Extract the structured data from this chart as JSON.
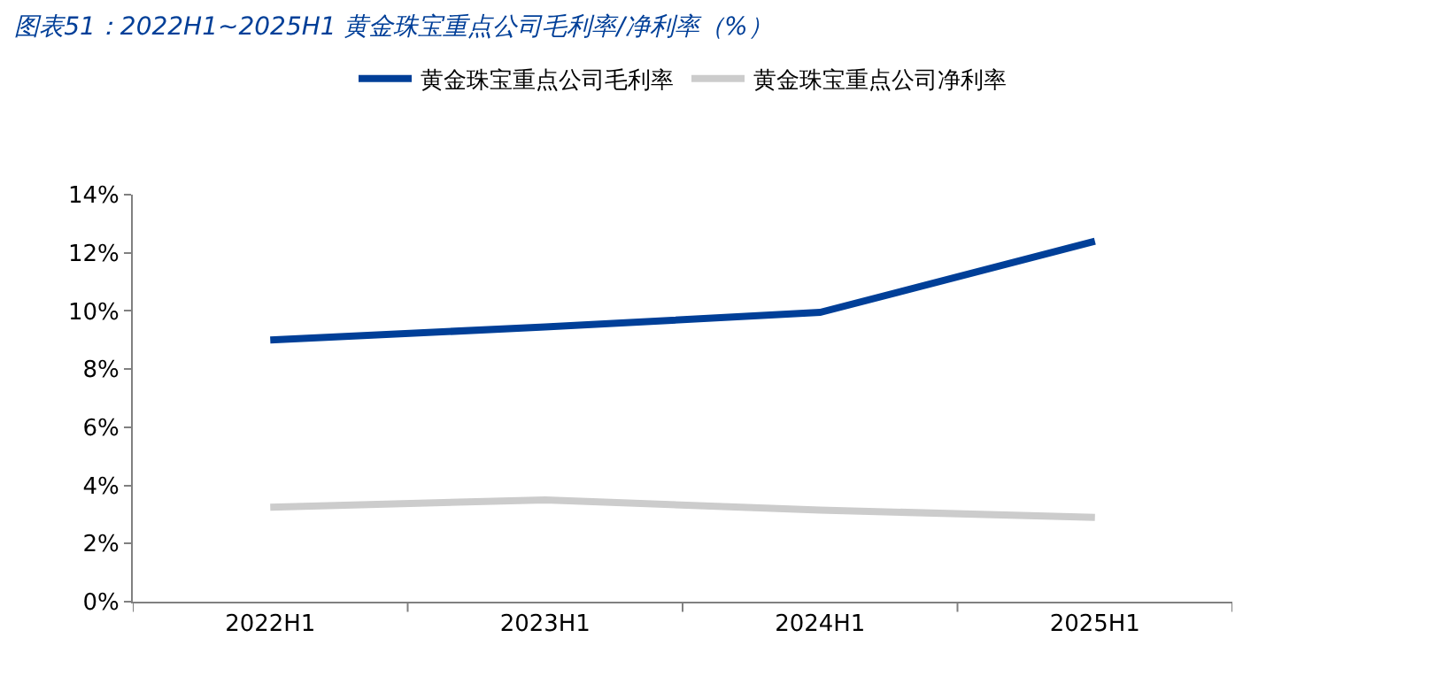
{
  "chart_data": {
    "type": "line",
    "title": "图表51：2022H1~2025H1 黄金珠宝重点公司毛利率/净利率（%）",
    "categories": [
      "2022H1",
      "2023H1",
      "2024H1",
      "2025H1"
    ],
    "series": [
      {
        "name": "黄金珠宝重点公司毛利率",
        "color": "#003f98",
        "values": [
          9.0,
          9.45,
          9.95,
          12.4
        ]
      },
      {
        "name": "黄金珠宝重点公司净利率",
        "color": "#cccccc",
        "values": [
          3.25,
          3.5,
          3.15,
          2.9
        ]
      }
    ],
    "ylim": [
      0,
      14
    ],
    "yticks": [
      {
        "value": 0,
        "label": "0%"
      },
      {
        "value": 2,
        "label": "2%"
      },
      {
        "value": 4,
        "label": "4%"
      },
      {
        "value": 6,
        "label": "6%"
      },
      {
        "value": 8,
        "label": "8%"
      },
      {
        "value": 10,
        "label": "10%"
      },
      {
        "value": 12,
        "label": "12%"
      },
      {
        "value": 14,
        "label": "14%"
      }
    ],
    "legend": "top",
    "marker": "none",
    "line_style": "solid"
  }
}
